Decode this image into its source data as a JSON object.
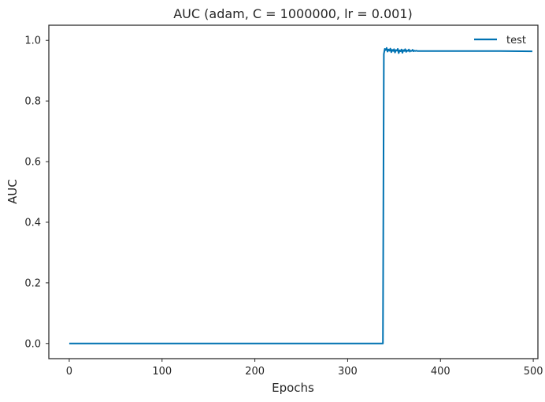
{
  "chart_data": {
    "type": "line",
    "title": "AUC (adam, C = 1000000, lr = 0.001)",
    "xlabel": "Epochs",
    "ylabel": "AUC",
    "xlim": [
      -22,
      505
    ],
    "ylim": [
      -0.05,
      1.05
    ],
    "xticks": [
      0,
      100,
      200,
      300,
      400,
      500
    ],
    "yticks": [
      0.0,
      0.2,
      0.4,
      0.6,
      0.8,
      1.0
    ],
    "xtick_labels": [
      "0",
      "100",
      "200",
      "300",
      "400",
      "500"
    ],
    "ytick_labels": [
      "0.0",
      "0.2",
      "0.4",
      "0.6",
      "0.8",
      "1.0"
    ],
    "grid": false,
    "legend_position": "top-right",
    "series": [
      {
        "name": "test",
        "color": "#0072b2",
        "x": [
          0,
          100,
          200,
          300,
          338,
          339,
          340,
          341,
          342,
          343,
          344,
          345,
          346,
          347,
          348,
          349,
          350,
          351,
          352,
          353,
          354,
          355,
          356,
          357,
          358,
          359,
          360,
          361,
          362,
          363,
          364,
          365,
          366,
          367,
          368,
          369,
          370,
          371,
          372,
          373,
          374,
          375,
          380,
          400,
          450,
          499
        ],
        "y": [
          0.0,
          0.0,
          0.0,
          0.0,
          0.0,
          0.955,
          0.972,
          0.968,
          0.975,
          0.963,
          0.97,
          0.966,
          0.973,
          0.961,
          0.969,
          0.965,
          0.971,
          0.96,
          0.968,
          0.966,
          0.972,
          0.958,
          0.967,
          0.964,
          0.97,
          0.959,
          0.968,
          0.965,
          0.971,
          0.962,
          0.967,
          0.965,
          0.97,
          0.963,
          0.966,
          0.965,
          0.969,
          0.964,
          0.966,
          0.965,
          0.966,
          0.965,
          0.965,
          0.965,
          0.965,
          0.964
        ]
      }
    ]
  }
}
